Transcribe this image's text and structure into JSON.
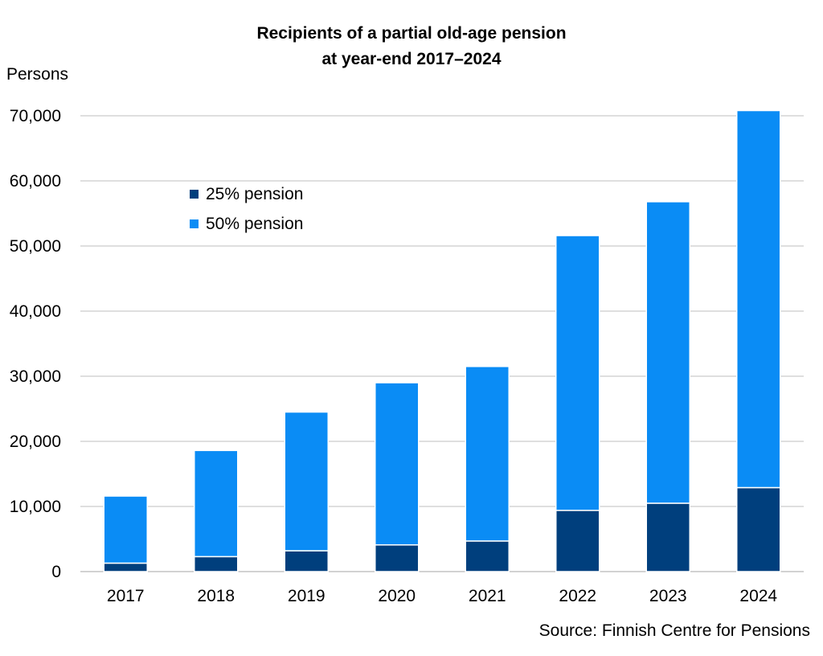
{
  "chart_data": {
    "type": "bar",
    "stacked": true,
    "title_line1": "Recipients of a partial old-age pension",
    "title_line2": "at year-end 2017–2024",
    "ylabel": "Persons",
    "xlabel": "",
    "source": "Source: Finnish Centre for Pensions",
    "categories": [
      "2017",
      "2018",
      "2019",
      "2020",
      "2021",
      "2022",
      "2023",
      "2024"
    ],
    "series": [
      {
        "name": "25% pension",
        "color": "#003f7d",
        "values": [
          1300,
          2300,
          3200,
          4100,
          4700,
          9400,
          10500,
          12900
        ]
      },
      {
        "name": "50% pension",
        "color": "#0a8cf5",
        "values": [
          10300,
          16300,
          21300,
          24900,
          26800,
          42200,
          46300,
          57900
        ]
      }
    ],
    "ylim": [
      0,
      70000
    ],
    "yticks": [
      0,
      10000,
      20000,
      30000,
      40000,
      50000,
      60000,
      70000
    ],
    "ytick_labels": [
      "0",
      "10,000",
      "20,000",
      "30,000",
      "40,000",
      "50,000",
      "60,000",
      "70,000"
    ],
    "grid": true,
    "legend_position": "upper-left"
  }
}
